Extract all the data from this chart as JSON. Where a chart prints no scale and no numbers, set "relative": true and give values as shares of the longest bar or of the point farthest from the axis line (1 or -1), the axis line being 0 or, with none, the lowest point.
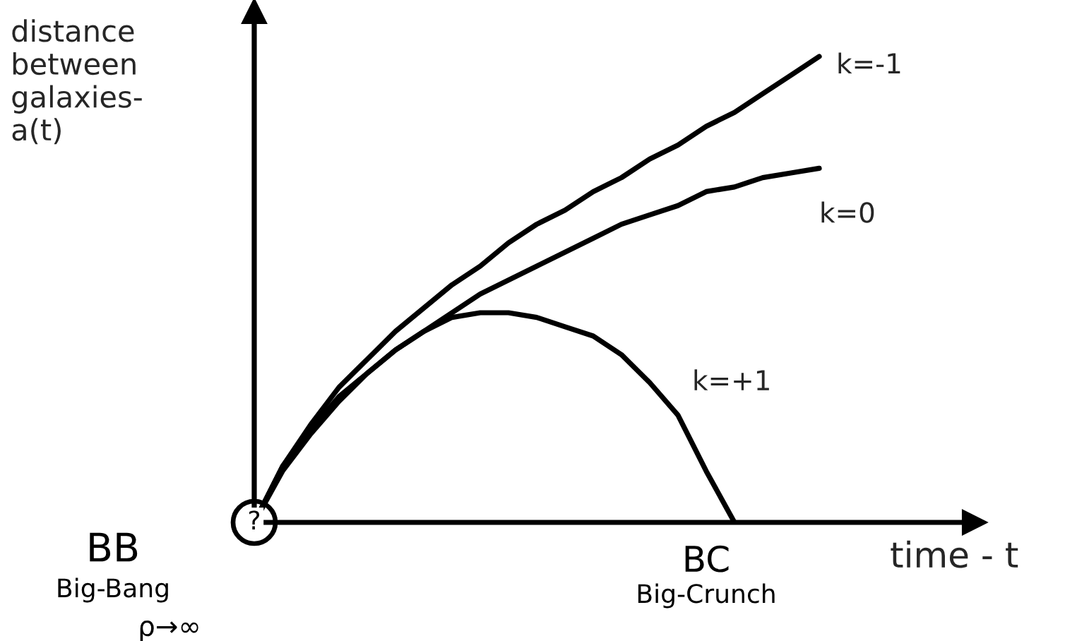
{
  "chart_data": {
    "type": "line",
    "relative": true,
    "xlabel": "time - t",
    "ylabel": "distance\nbetween\ngalaxies-\na(t)",
    "categories": [
      null,
      null,
      null,
      null,
      null,
      null,
      null,
      null,
      null,
      null,
      null,
      null,
      null,
      null,
      null,
      null,
      null,
      null,
      null,
      null,
      null
    ],
    "series": [
      {
        "name": "k=-1",
        "color": "#000000",
        "values": [
          0,
          0.12,
          0.21,
          0.29,
          0.35,
          0.41,
          0.46,
          0.51,
          0.55,
          0.6,
          0.64,
          0.67,
          0.71,
          0.74,
          0.78,
          0.81,
          0.85,
          0.88,
          0.92,
          0.96,
          1
        ]
      },
      {
        "name": "k=0",
        "color": "#000000",
        "values": [
          0,
          0.12,
          0.2,
          0.27,
          0.32,
          0.37,
          0.41,
          0.45,
          0.49,
          0.52,
          0.55,
          0.58,
          0.61,
          0.64,
          0.66,
          0.68,
          0.71,
          0.72,
          0.74,
          0.75,
          0.76
        ]
      },
      {
        "name": "k=+1",
        "color": "#000000",
        "values": [
          0,
          0.11,
          0.19,
          0.26,
          0.32,
          0.37,
          0.41,
          0.44,
          0.45,
          0.45,
          0.44,
          0.42,
          0.4,
          0.36,
          0.3,
          0.23,
          0.11,
          0,
          null,
          null,
          null
        ]
      }
    ],
    "annotations": [
      "BB",
      "Big-Bang",
      "ρ→∞",
      "?",
      "BC",
      "Big-Crunch"
    ],
    "legend": false,
    "marker": "none",
    "line_style": "solid"
  }
}
